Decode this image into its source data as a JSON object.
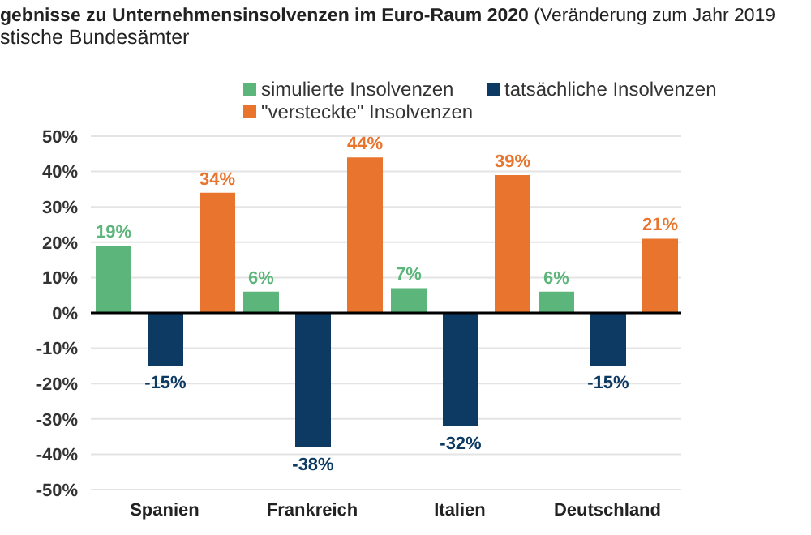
{
  "chart_data": {
    "type": "bar",
    "title": "gebnisse zu Unternehmensinsolvenzen im Euro-Raum 2020",
    "subtitle": "(Veränderung zum Jahr 2019",
    "annotations": [
      "stische Bundesämter"
    ],
    "categories": [
      "Spanien",
      "Frankreich",
      "Italien",
      "Deutschland"
    ],
    "series": [
      {
        "name": "simulierte Insolvenzen",
        "color": "#5cb57a",
        "values": [
          19,
          6,
          7,
          6
        ],
        "value_labels": [
          "19%",
          "6%",
          "7%",
          "6%"
        ]
      },
      {
        "name": "tatsächliche Insolvenzen",
        "color": "#0d3a63",
        "values": [
          -15,
          -38,
          -32,
          -15
        ],
        "value_labels": [
          "-15%",
          "-38%",
          "-32%",
          "-15%"
        ]
      },
      {
        "name": "\"versteckte\" Insolvenzen",
        "color": "#e8742d",
        "values": [
          34,
          44,
          39,
          21
        ],
        "value_labels": [
          "34%",
          "44%",
          "39%",
          "21%"
        ]
      }
    ],
    "ylim": [
      -50,
      50
    ],
    "yticks": [
      {
        "value": -50,
        "label": "-50%"
      },
      {
        "value": -40,
        "label": "-40%"
      },
      {
        "value": -30,
        "label": "-30%"
      },
      {
        "value": -20,
        "label": "-20%"
      },
      {
        "value": -10,
        "label": "-10%"
      },
      {
        "value": 0,
        "label": "0%"
      },
      {
        "value": 10,
        "label": "10%"
      },
      {
        "value": 20,
        "label": "20%"
      },
      {
        "value": 30,
        "label": "30%"
      },
      {
        "value": 40,
        "label": "40%"
      },
      {
        "value": 50,
        "label": "50%"
      }
    ],
    "grid": "y",
    "legend": "top"
  }
}
